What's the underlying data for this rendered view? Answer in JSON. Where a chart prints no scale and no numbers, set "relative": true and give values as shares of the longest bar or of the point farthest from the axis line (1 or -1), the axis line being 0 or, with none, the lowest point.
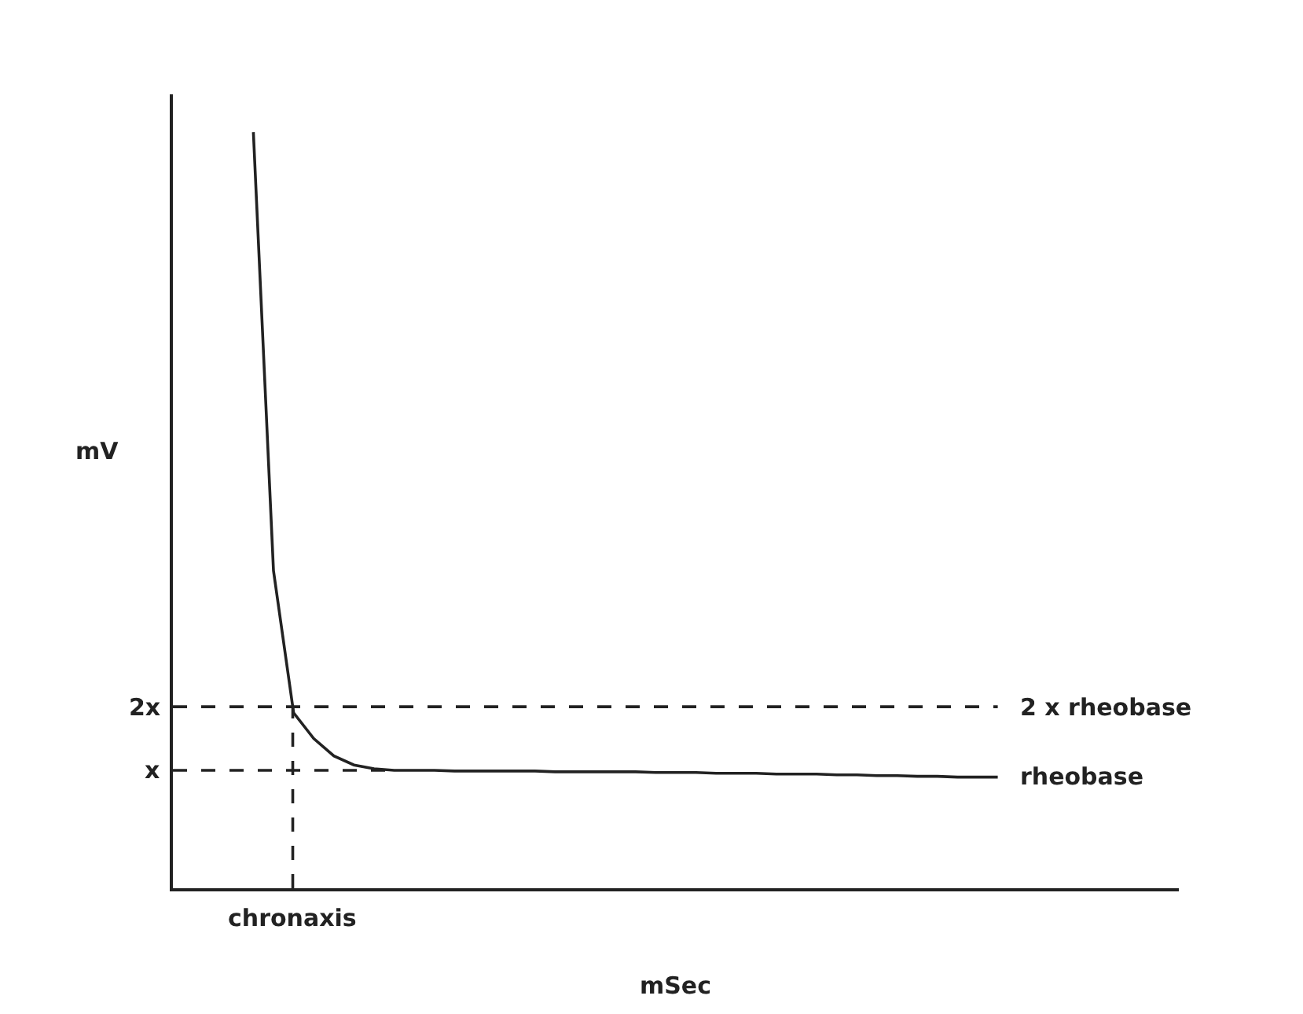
{
  "chart_data": {
    "type": "line",
    "xlabel": "mSec",
    "ylabel": "mV",
    "categories": [
      null,
      null,
      null,
      null,
      null,
      null,
      null,
      null,
      null,
      null,
      null,
      null,
      null,
      null,
      null,
      null,
      null,
      null,
      null,
      null,
      null,
      null,
      null,
      null,
      null,
      null,
      null,
      null,
      null,
      null,
      null,
      null,
      null,
      null,
      null,
      null,
      null,
      null,
      null,
      null,
      null,
      null,
      null,
      null,
      null,
      null,
      null,
      null,
      null,
      null,
      null
    ],
    "series": [
      {
        "color": "#222222",
        "values": [
          null,
          null,
          null,
          null,
          1.0,
          0.42,
          0.232,
          0.198,
          0.175,
          0.163,
          0.158,
          0.156,
          0.156,
          0.156,
          0.155,
          0.155,
          0.155,
          0.155,
          0.155,
          0.154,
          0.154,
          0.154,
          0.154,
          0.154,
          0.153,
          0.153,
          0.153,
          0.152,
          0.152,
          0.152,
          0.151,
          0.151,
          0.151,
          0.15,
          0.15,
          0.149,
          0.149,
          0.148,
          0.148,
          0.147,
          0.147,
          0.147,
          null,
          null,
          null,
          null,
          null,
          null,
          null,
          null,
          null
        ]
      }
    ],
    "relative": true,
    "ref_lines": [
      {
        "axis": "y",
        "value": 0.24,
        "label": "2x",
        "line_style": "dashed"
      },
      {
        "axis": "y",
        "value": 0.156,
        "label": "x",
        "line_style": "dashed"
      }
    ],
    "annotations": [
      "2 x rheobase",
      "rheobase",
      "chronaxis"
    ],
    "legend": false,
    "marker": "none",
    "line_style": "solid"
  }
}
